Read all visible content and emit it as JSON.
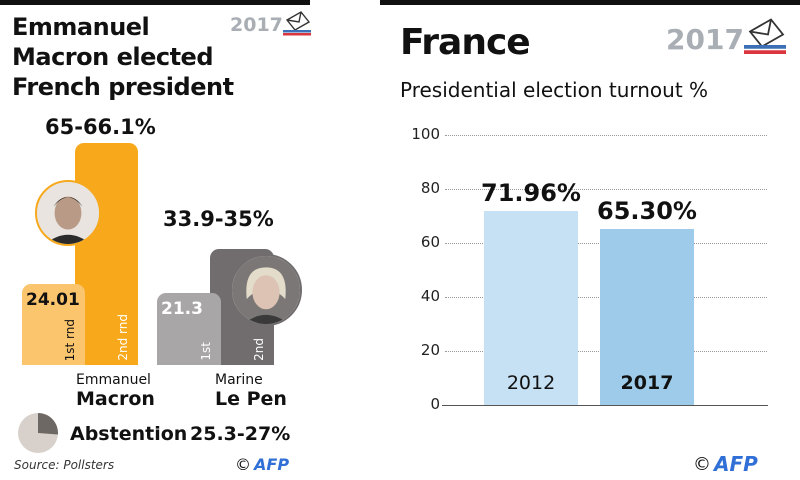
{
  "left": {
    "title": [
      "Emmanuel",
      "Macron elected",
      "French president"
    ],
    "logo_year": "2017",
    "source": "Source: Pollsters",
    "credit_symbol": "©",
    "credit": "AFP",
    "abstention": {
      "label": "Abstention",
      "value_label": "25.3-27%",
      "range": [
        25.3,
        27
      ]
    }
  },
  "right": {
    "title": "France",
    "subtitle": "Presidential election turnout %",
    "logo_year": "2017",
    "credit_symbol": "©",
    "credit": "AFP"
  },
  "chart_data": [
    {
      "type": "bar",
      "categories": [
        "Emmanuel Macron",
        "Marine Le Pen"
      ],
      "candidates": [
        {
          "first_name": "Emmanuel",
          "last_name": "Macron",
          "round1": 24.01,
          "round1_label": "24.01",
          "round2_range": [
            65,
            66.1
          ],
          "round2_label": "65-66.1%",
          "colors": [
            "#fbc56d",
            "#f7a91b"
          ],
          "r1_text": "1st rnd",
          "r2_text": "2nd rnd"
        },
        {
          "first_name": "Marine",
          "last_name": "Le Pen",
          "round1": 21.3,
          "round1_label": "21.3",
          "round2_range": [
            33.9,
            35
          ],
          "round2_label": "33.9-35%",
          "colors": [
            "#a9a6a7",
            "#716d6e"
          ],
          "r1_text": "1st",
          "r2_text": "2nd"
        }
      ]
    },
    {
      "type": "bar",
      "title": "Presidential election turnout %",
      "categories": [
        "2012",
        "2017"
      ],
      "values": [
        71.96,
        65.3
      ],
      "value_labels": [
        "71.96%",
        "65.30%"
      ],
      "colors": [
        "#c6e1f3",
        "#9dcbe9"
      ],
      "ylim": [
        0,
        100
      ],
      "yticks": [
        "0",
        "20",
        "40",
        "60",
        "80",
        "100"
      ],
      "grid": true
    }
  ]
}
